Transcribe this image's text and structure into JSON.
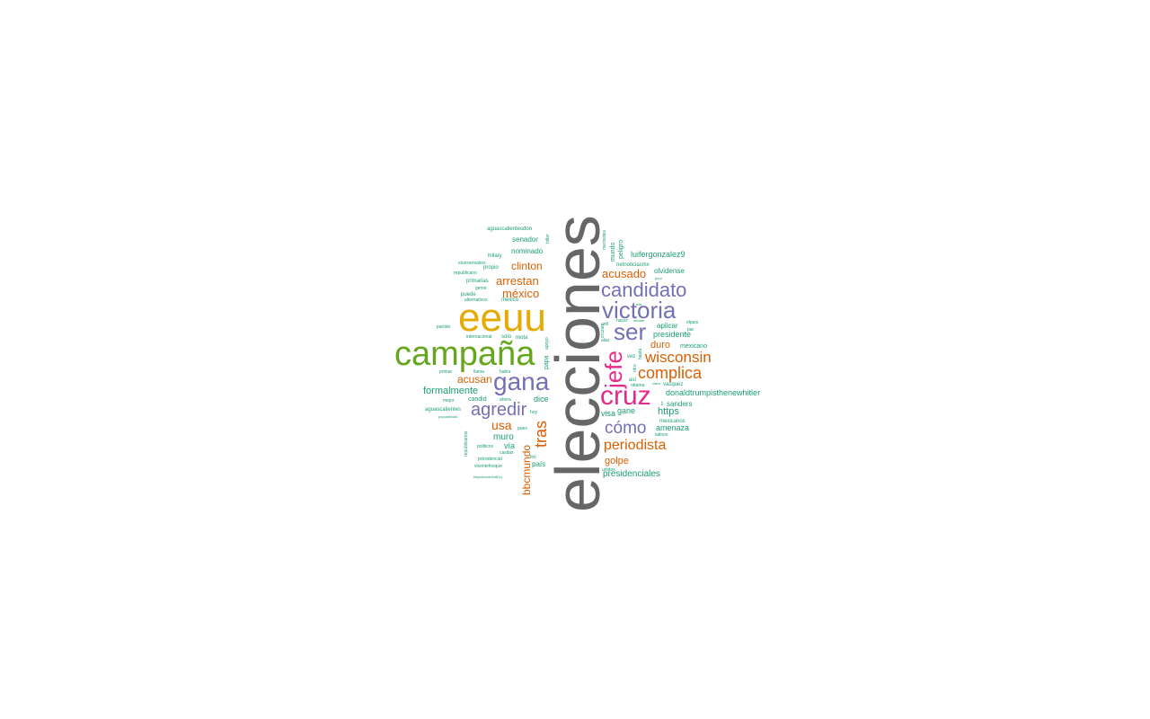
{
  "palette": {
    "teal": "#1b9e77",
    "orange": "#d95f02",
    "purple": "#7570b3",
    "pink": "#e7298a",
    "green": "#66a61e",
    "gold": "#e6ab02",
    "gray": "#666666"
  },
  "words": [
    "elecciones",
    "eeuu",
    "campaña",
    "gana",
    "cruz",
    "victoria",
    "candidato",
    "ser",
    "jefe",
    "agredir",
    "cómo",
    "complica",
    "wisconsin",
    "periodista",
    "tras",
    "clinton",
    "arrestan",
    "méxico",
    "acusado",
    "acusan",
    "usa",
    "bbcmundo",
    "duro",
    "golpe",
    "luifergonzalez9",
    "formalmente",
    "donaldtrumpisthenewhitler",
    "presidenciales",
    "https",
    "muro",
    "senador",
    "nominado",
    "presidente",
    "olvidense",
    "aplicar",
    "amenaza",
    "sanders",
    "gane",
    "visa",
    "dice",
    "vía",
    "país",
    "mexicano",
    "candid",
    "hillary",
    "propio",
    "primarias",
    "puede",
    "aguascalientesdon",
    "eluniversalmx",
    "republicano",
    "gente",
    "alternativos",
    "méxico",
    "partido",
    "internacional",
    "solo",
    "mota",
    "primar",
    "llama",
    "habla",
    "mejor",
    "ahora",
    "aguascalientes",
    "hoy",
    "popularidad",
    "republicanos",
    "pues",
    "politicos",
    "casitas",
    "presidencial",
    "fox",
    "vicentefoxque",
    "httpstcoxde6d81q",
    "papa",
    "apoyo",
    "mundo",
    "peligro",
    "netnoticiasmx",
    "hitler",
    "mercedes",
    "vez",
    "hacer",
    "debate",
    "anti",
    "elpais",
    "par",
    "elia",
    "cruzan",
    "alas",
    "hasta",
    "otro",
    "así",
    "obama",
    "clara",
    "vazquez",
    "tre",
    "mexicanos",
    "latinos",
    "unidos",
    "peor"
  ]
}
